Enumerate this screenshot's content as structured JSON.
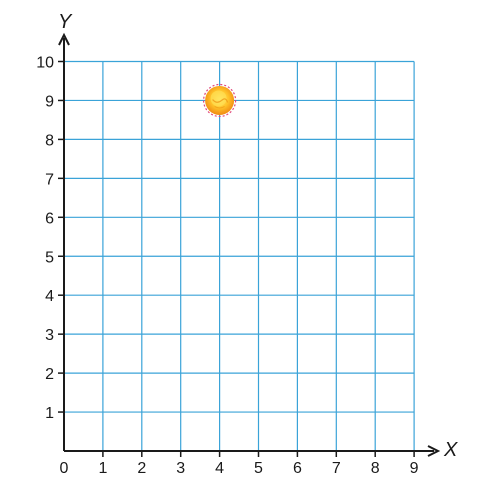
{
  "chart_data": {
    "type": "scatter",
    "title": "",
    "xlabel": "X",
    "ylabel": "Y",
    "xlim": [
      0,
      9
    ],
    "ylim": [
      0,
      10
    ],
    "x_ticks": [
      "0",
      "1",
      "2",
      "3",
      "4",
      "5",
      "6",
      "7",
      "8",
      "9"
    ],
    "y_ticks": [
      "1",
      "2",
      "3",
      "4",
      "5",
      "6",
      "7",
      "8",
      "9",
      "10"
    ],
    "grid": true,
    "grid_color": "#3aa3d8",
    "axis_color": "#1a1a1a",
    "points": [
      {
        "x": 4,
        "y": 9,
        "marker": "sun-icon",
        "color": "#f6a41c"
      }
    ]
  }
}
